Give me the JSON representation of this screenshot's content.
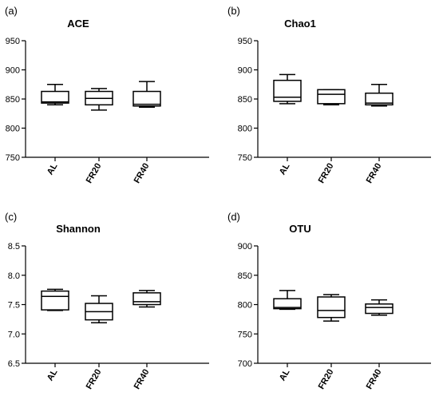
{
  "chart_data": [
    {
      "type": "boxplot",
      "panel_label": "(a)",
      "title": "ACE",
      "categories": [
        "AL",
        "FR20",
        "FR40"
      ],
      "yticks": [
        750,
        800,
        850,
        900,
        950
      ],
      "ylim": [
        750,
        950
      ],
      "boxes": [
        {
          "category": "AL",
          "min": 840,
          "q1": 843,
          "median": 845,
          "q3": 863,
          "max": 875
        },
        {
          "category": "FR20",
          "min": 831,
          "q1": 840,
          "median": 851,
          "q3": 863,
          "max": 868
        },
        {
          "category": "FR40",
          "min": 836,
          "q1": 838,
          "median": 841,
          "q3": 863,
          "max": 880
        }
      ]
    },
    {
      "type": "boxplot",
      "panel_label": "(b)",
      "title": "Chao1",
      "categories": [
        "AL",
        "FR20",
        "FR40"
      ],
      "yticks": [
        750,
        800,
        850,
        900,
        950
      ],
      "ylim": [
        750,
        950
      ],
      "boxes": [
        {
          "category": "AL",
          "min": 842,
          "q1": 846,
          "median": 853,
          "q3": 882,
          "max": 892
        },
        {
          "category": "FR20",
          "min": 840,
          "q1": 842,
          "median": 858,
          "q3": 866,
          "max": 866
        },
        {
          "category": "FR40",
          "min": 838,
          "q1": 840,
          "median": 843,
          "q3": 860,
          "max": 875
        }
      ]
    },
    {
      "type": "boxplot",
      "panel_label": "(c)",
      "title": "Shannon",
      "categories": [
        "AL",
        "FR20",
        "FR40"
      ],
      "yticks": [
        "6.5",
        "7.0",
        "7.5",
        "8.0",
        "8.5"
      ],
      "ylim": [
        6.5,
        8.5
      ],
      "boxes": [
        {
          "category": "AL",
          "min": 7.4,
          "q1": 7.41,
          "median": 7.64,
          "q3": 7.73,
          "max": 7.76
        },
        {
          "category": "FR20",
          "min": 7.19,
          "q1": 7.24,
          "median": 7.38,
          "q3": 7.52,
          "max": 7.65
        },
        {
          "category": "FR40",
          "min": 7.46,
          "q1": 7.5,
          "median": 7.55,
          "q3": 7.7,
          "max": 7.74
        }
      ]
    },
    {
      "type": "boxplot",
      "panel_label": "(d)",
      "title": "OTU",
      "categories": [
        "AL",
        "FR20",
        "FR40"
      ],
      "yticks": [
        700,
        750,
        800,
        850,
        900
      ],
      "ylim": [
        700,
        900
      ],
      "boxes": [
        {
          "category": "AL",
          "min": 792,
          "q1": 793,
          "median": 795,
          "q3": 810,
          "max": 824
        },
        {
          "category": "FR20",
          "min": 772,
          "q1": 778,
          "median": 790,
          "q3": 813,
          "max": 817
        },
        {
          "category": "FR40",
          "min": 782,
          "q1": 785,
          "median": 795,
          "q3": 801,
          "max": 808
        }
      ]
    }
  ]
}
